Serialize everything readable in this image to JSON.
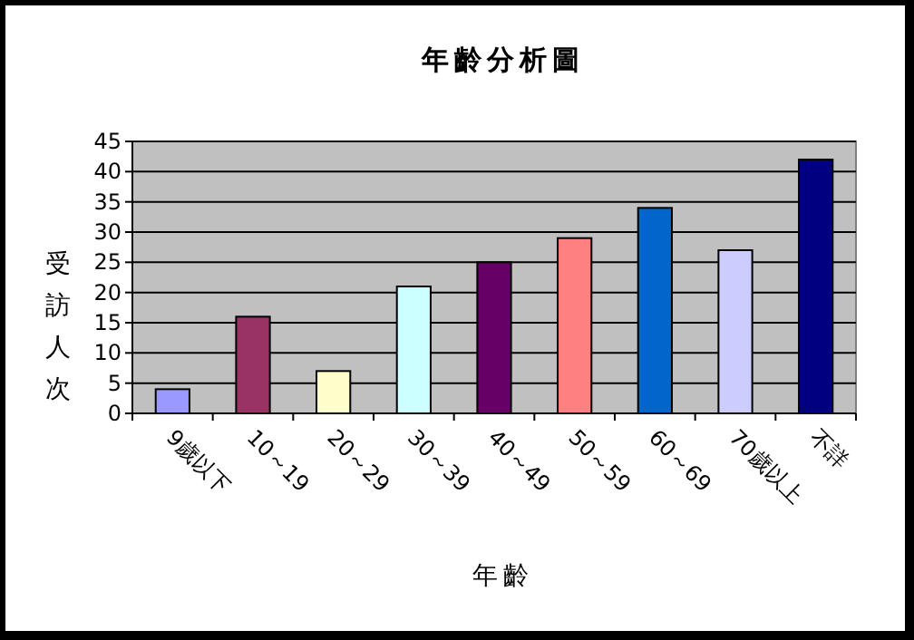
{
  "chart_data": {
    "type": "bar",
    "title": "年齡分析圖",
    "xlabel": "年齡",
    "ylabel": "受訪人次",
    "categories": [
      "9歲以下",
      "10～19",
      "20～29",
      "30～39",
      "40～49",
      "50～59",
      "60～69",
      "70歲以上",
      "不詳"
    ],
    "values": [
      4,
      16,
      7,
      21,
      25,
      29,
      34,
      27,
      42
    ],
    "colors": [
      "#9999ff",
      "#993366",
      "#ffffcc",
      "#ccffff",
      "#660066",
      "#ff8080",
      "#0066cc",
      "#ccccff",
      "#000080"
    ],
    "ylim": [
      0,
      45
    ],
    "yticks": [
      0,
      5,
      10,
      15,
      20,
      25,
      30,
      35,
      40,
      45
    ],
    "grid": "y"
  }
}
